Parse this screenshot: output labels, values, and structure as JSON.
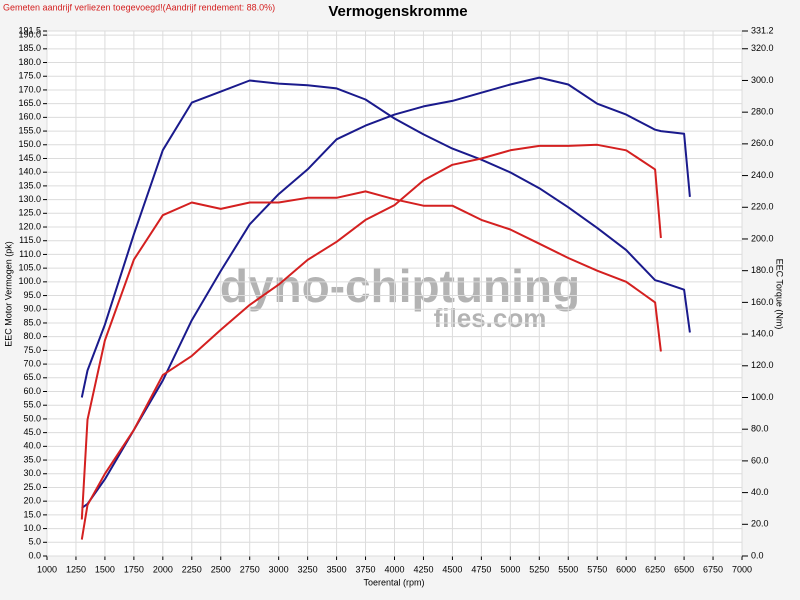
{
  "chart_data": {
    "type": "line",
    "title": "Vermogenskromme",
    "annotation": "Gemeten aandrijf verliezen toegevoegd!(Aandrijf rendement: 88.0%)",
    "watermark": [
      "dyno-chiptuning",
      "files.com"
    ],
    "xlabel": "Toerental (rpm)",
    "ylabel": "EEC Motor Vermogen (pk)",
    "y2label": "EEC Torque (Nm)",
    "grid": true,
    "x": [
      1300,
      1350,
      1500,
      1750,
      2000,
      2250,
      2500,
      2750,
      3000,
      3250,
      3500,
      3750,
      4000,
      4250,
      4500,
      4750,
      5000,
      5250,
      5500,
      5750,
      6000,
      6250,
      6300,
      6500,
      6550
    ],
    "series": [
      {
        "color": "#1a1a8c",
        "values": [
          17.5,
          19,
          28,
          46,
          64,
          86,
          104,
          121,
          132,
          141,
          152,
          157,
          161,
          164,
          166,
          169,
          172,
          174.5,
          172,
          165,
          161,
          155.5,
          155,
          154,
          131
        ]
      },
      {
        "color": "#1a1a8c",
        "axis": "y2",
        "values": [
          100,
          117,
          146,
          203,
          256,
          286,
          293,
          300,
          298,
          297,
          295,
          288,
          276,
          266,
          257,
          250,
          242,
          232,
          220,
          207,
          193,
          174,
          173,
          168,
          141
        ]
      },
      {
        "color": "#d42020",
        "values": [
          6,
          18.6,
          30,
          46,
          66,
          73,
          82.5,
          91.6,
          99,
          108,
          114.6,
          122.6,
          128,
          137,
          142.7,
          145,
          148,
          149.6,
          149.6,
          150,
          148,
          141,
          116,
          null,
          null
        ]
      },
      {
        "color": "#d42020",
        "axis": "y2",
        "values": [
          23,
          86,
          136,
          187,
          215,
          223,
          219,
          223,
          223,
          226,
          226,
          230,
          225,
          221,
          221,
          212,
          206,
          197,
          188,
          180,
          173,
          160,
          129,
          null,
          null
        ]
      }
    ],
    "xlim": [
      1000,
      7000
    ],
    "xticks": [
      1000,
      1250,
      1500,
      1750,
      2000,
      2250,
      2500,
      2750,
      3000,
      3250,
      3500,
      3750,
      4000,
      4250,
      4500,
      4750,
      5000,
      5250,
      5500,
      5750,
      6000,
      6250,
      6500,
      6750,
      7000
    ],
    "ylim": [
      0,
      191.5
    ],
    "yticks": [
      {
        "value": 0,
        "label": "0.0"
      },
      {
        "value": 5,
        "label": "5.0"
      },
      {
        "value": 10,
        "label": "10.0"
      },
      {
        "value": 15,
        "label": "15.0"
      },
      {
        "value": 20,
        "label": "20.0"
      },
      {
        "value": 25,
        "label": "25.0"
      },
      {
        "value": 30,
        "label": "30.0"
      },
      {
        "value": 35,
        "label": "35.0"
      },
      {
        "value": 40,
        "label": "40.0"
      },
      {
        "value": 45,
        "label": "45.0"
      },
      {
        "value": 50,
        "label": "50.0"
      },
      {
        "value": 55,
        "label": "55.0"
      },
      {
        "value": 60,
        "label": "60.0"
      },
      {
        "value": 65,
        "label": "65.0"
      },
      {
        "value": 70,
        "label": "70.0"
      },
      {
        "value": 75,
        "label": "75.0"
      },
      {
        "value": 80,
        "label": "80.0"
      },
      {
        "value": 85,
        "label": "85.0"
      },
      {
        "value": 90,
        "label": "90.0"
      },
      {
        "value": 95,
        "label": "95.0"
      },
      {
        "value": 100,
        "label": "100.0"
      },
      {
        "value": 105,
        "label": "105.0"
      },
      {
        "value": 110,
        "label": "110.0"
      },
      {
        "value": 115,
        "label": "115.0"
      },
      {
        "value": 120,
        "label": "120.0"
      },
      {
        "value": 125,
        "label": "125.0"
      },
      {
        "value": 130,
        "label": "130.0"
      },
      {
        "value": 135,
        "label": "135.0"
      },
      {
        "value": 140,
        "label": "140.0"
      },
      {
        "value": 145,
        "label": "145.0"
      },
      {
        "value": 150,
        "label": "150.0"
      },
      {
        "value": 155,
        "label": "155.0"
      },
      {
        "value": 160,
        "label": "160.0"
      },
      {
        "value": 165,
        "label": "165.0"
      },
      {
        "value": 170,
        "label": "170.0"
      },
      {
        "value": 175,
        "label": "175.0"
      },
      {
        "value": 180,
        "label": "180.0"
      },
      {
        "value": 185,
        "label": "185.0"
      },
      {
        "value": 190,
        "label": "190.0"
      },
      {
        "value": 191.5,
        "label": "191.5"
      }
    ],
    "y2lim": [
      0,
      331.2
    ],
    "y2ticks": [
      {
        "value": 0,
        "label": "0.0"
      },
      {
        "value": 20,
        "label": "20.0"
      },
      {
        "value": 40,
        "label": "40.0"
      },
      {
        "value": 60,
        "label": "60.0"
      },
      {
        "value": 80,
        "label": "80.0"
      },
      {
        "value": 100,
        "label": "100.0"
      },
      {
        "value": 120,
        "label": "120.0"
      },
      {
        "value": 140,
        "label": "140.0"
      },
      {
        "value": 160,
        "label": "160.0"
      },
      {
        "value": 180,
        "label": "180.0"
      },
      {
        "value": 200,
        "label": "200.0"
      },
      {
        "value": 220,
        "label": "220.0"
      },
      {
        "value": 240,
        "label": "240.0"
      },
      {
        "value": 260,
        "label": "260.0"
      },
      {
        "value": 280,
        "label": "280.0"
      },
      {
        "value": 300,
        "label": "300.0"
      },
      {
        "value": 320,
        "label": "320.0"
      },
      {
        "value": 331.2,
        "label": "331.2"
      }
    ]
  }
}
